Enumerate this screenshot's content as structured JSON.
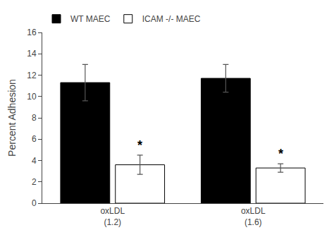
{
  "chart_data": {
    "type": "bar",
    "categories": [
      "oxLDL\n(1.2)",
      "oxLDL\n(1.6)"
    ],
    "series": [
      {
        "name": "WT MAEC",
        "color": "#000000",
        "values": [
          11.3,
          11.7
        ],
        "errors": [
          1.7,
          1.3
        ]
      },
      {
        "name": "ICAM -/- MAEC",
        "color": "#ffffff",
        "values": [
          3.6,
          3.3
        ],
        "errors": [
          0.9,
          0.4
        ]
      }
    ],
    "annotations": [
      {
        "text": "*",
        "category": "oxLDL\n(1.2)",
        "series": "ICAM -/- MAEC"
      },
      {
        "text": "*",
        "category": "oxLDL\n(1.6)",
        "series": "ICAM -/- MAEC"
      }
    ],
    "ylabel": "Percent Adhesion",
    "ylim": [
      0,
      16
    ],
    "yticks": [
      0,
      2,
      4,
      6,
      8,
      10,
      12,
      14,
      16
    ],
    "grid": false,
    "legend": "upper left"
  }
}
